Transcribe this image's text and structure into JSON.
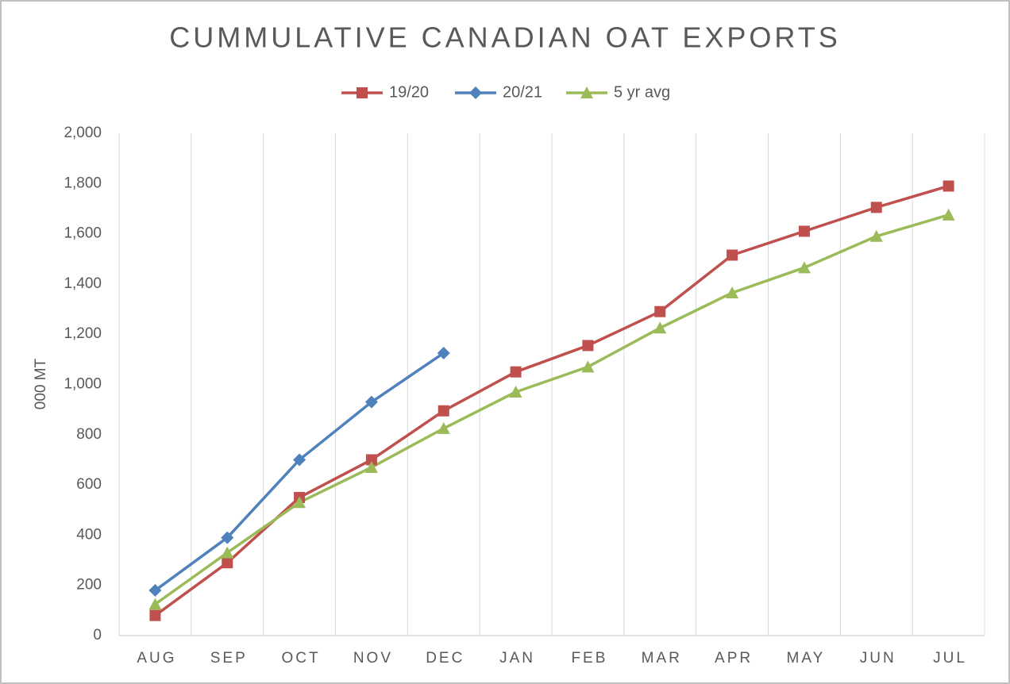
{
  "chart_data": {
    "type": "line",
    "title": "CUMMULATIVE CANADIAN OAT EXPORTS",
    "y_label": "000 MT",
    "categories": [
      "AUG",
      "SEP",
      "OCT",
      "NOV",
      "DEC",
      "JAN",
      "FEB",
      "MAR",
      "APR",
      "MAY",
      "JUN",
      "JUL"
    ],
    "series": [
      {
        "name": "19/20",
        "color": "#c0504d",
        "marker": "square",
        "values": [
          80,
          290,
          550,
          700,
          895,
          1050,
          1155,
          1290,
          1515,
          1610,
          1705,
          1790
        ]
      },
      {
        "name": "20/21",
        "color": "#4f81bd",
        "marker": "diamond",
        "values": [
          180,
          390,
          700,
          930,
          1125,
          null,
          null,
          null,
          null,
          null,
          null,
          null
        ]
      },
      {
        "name": "5 yr avg",
        "color": "#9bbb59",
        "marker": "triangle",
        "values": [
          125,
          330,
          530,
          670,
          825,
          970,
          1070,
          1225,
          1365,
          1465,
          1590,
          1675
        ]
      }
    ],
    "ylim": [
      0,
      2000
    ],
    "yticks": [
      0,
      200,
      400,
      600,
      800,
      {
        "value": 1000,
        "label": "1,000"
      },
      {
        "value": 1200,
        "label": "1,200"
      },
      {
        "value": 1400,
        "label": "1,400"
      },
      {
        "value": 1600,
        "label": "1,600"
      },
      {
        "value": 1800,
        "label": "1,800"
      },
      {
        "value": 2000,
        "label": "2,000"
      }
    ],
    "grid": "x",
    "legend": "top"
  }
}
